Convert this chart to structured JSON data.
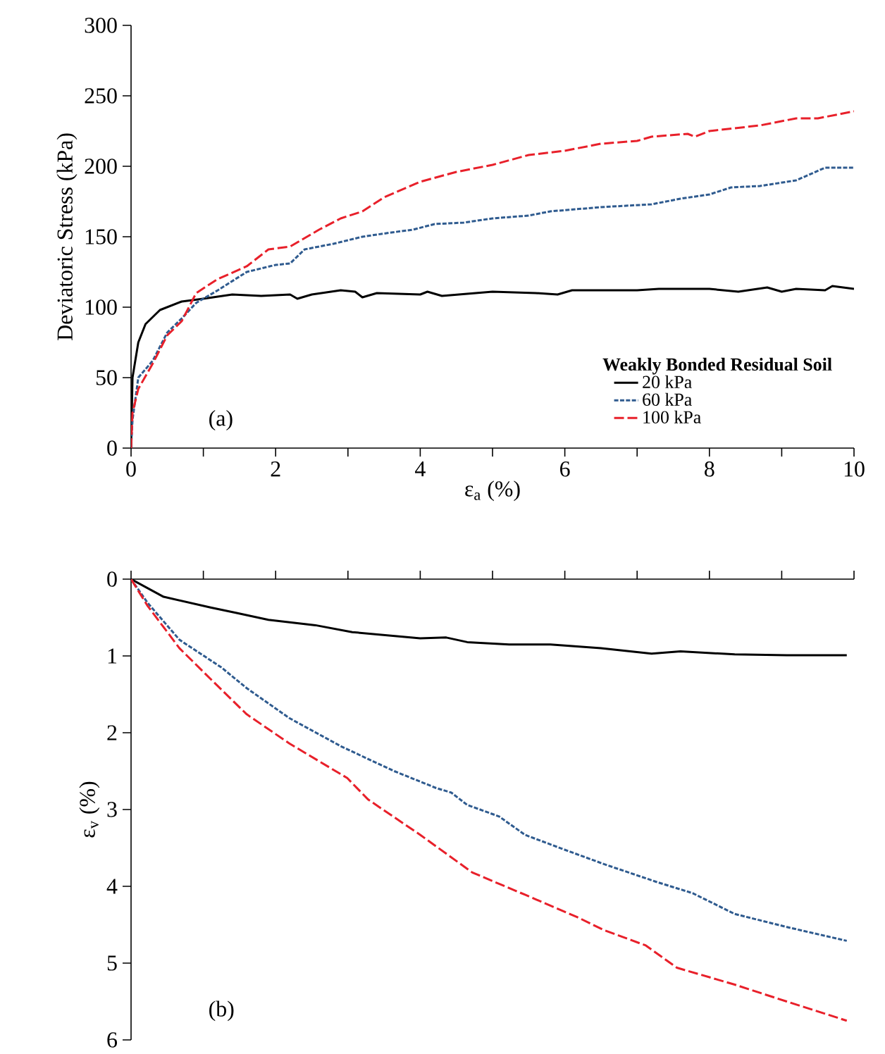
{
  "chart_data": [
    {
      "type": "line",
      "xlabel": "ε$_{a}$ (%)",
      "ylabel": "Deviatoric Stress (kPa)",
      "legend_title": "Weakly Bonded Residual Soil",
      "legend": "bottom right",
      "xlim": [
        0,
        10
      ],
      "xticks": [
        0,
        {
          "value": 1,
          "label": null
        },
        2,
        {
          "value": 3,
          "label": null
        },
        4,
        {
          "value": 5,
          "label": null
        },
        6,
        {
          "value": 7,
          "label": null
        },
        8,
        {
          "value": 9,
          "label": null
        },
        10
      ],
      "ylim": [
        0,
        300
      ],
      "yticks": [
        0,
        50,
        100,
        150,
        200,
        250,
        300
      ],
      "annotations": [
        "(a)"
      ],
      "series": [
        {
          "name": "20 kPa",
          "color": "#000000",
          "line_style": "solid",
          "x": [
            0,
            0.02,
            0.1,
            0.2,
            0.4,
            0.7,
            1.0,
            1.4,
            1.8,
            2.2,
            2.3,
            2.5,
            2.9,
            3.1,
            3.2,
            3.4,
            4.0,
            4.1,
            4.3,
            5.0,
            5.6,
            5.9,
            6.1,
            7.0,
            7.3,
            8.0,
            8.4,
            8.8,
            9.0,
            9.2,
            9.6,
            9.7,
            10
          ],
          "values": [
            0,
            50,
            75,
            88,
            98,
            104,
            106,
            109,
            108,
            109,
            106,
            109,
            112,
            111,
            107,
            110,
            109,
            111,
            108,
            111,
            110,
            109,
            112,
            112,
            113,
            113,
            111,
            114,
            111,
            113,
            112,
            115,
            113
          ]
        },
        {
          "name": "60 kPa",
          "color": "#2f5b8f",
          "line_style": "dotted",
          "x": [
            0,
            0.02,
            0.1,
            0.3,
            0.5,
            0.7,
            0.9,
            1.2,
            1.6,
            2.0,
            2.2,
            2.4,
            2.8,
            3.2,
            3.6,
            3.9,
            4.2,
            4.6,
            5.0,
            5.5,
            5.8,
            6.5,
            7.2,
            7.6,
            8.0,
            8.3,
            8.7,
            9.2,
            9.6,
            10
          ],
          "values": [
            0,
            20,
            50,
            62,
            82,
            92,
            103,
            112,
            125,
            130,
            131,
            141,
            145,
            150,
            153,
            155,
            159,
            160,
            163,
            165,
            168,
            171,
            173,
            177,
            180,
            185,
            186,
            190,
            199,
            199
          ]
        },
        {
          "name": "100 kPa",
          "color": "#e8202a",
          "line_style": "dashed",
          "x": [
            0,
            0.02,
            0.1,
            0.3,
            0.5,
            0.7,
            0.9,
            1.2,
            1.6,
            1.9,
            2.2,
            2.6,
            2.9,
            3.2,
            3.5,
            4.0,
            4.5,
            5.0,
            5.5,
            6.0,
            6.5,
            7.0,
            7.2,
            7.7,
            7.8,
            8.0,
            8.7,
            9.2,
            9.5,
            10
          ],
          "values": [
            0,
            25,
            42,
            60,
            80,
            90,
            110,
            120,
            129,
            141,
            143,
            155,
            163,
            168,
            178,
            189,
            196,
            201,
            208,
            211,
            216,
            218,
            221,
            223,
            221,
            225,
            229,
            234,
            234,
            239
          ]
        }
      ]
    },
    {
      "type": "line",
      "ylabel": "ε$_{v}$ (%)",
      "tick_labels": "y",
      "xlim": [
        0,
        10
      ],
      "xticks": [
        {
          "value": 0,
          "label": null
        },
        {
          "value": 1,
          "label": null
        },
        {
          "value": 2,
          "label": null
        },
        {
          "value": 3,
          "label": null
        },
        {
          "value": 4,
          "label": null
        },
        {
          "value": 5,
          "label": null
        },
        {
          "value": 6,
          "label": null
        },
        {
          "value": 7,
          "label": null
        },
        {
          "value": 8,
          "label": null
        },
        {
          "value": 9,
          "label": null
        },
        {
          "value": 10,
          "label": null
        }
      ],
      "ylim": [
        6,
        0
      ],
      "yticks": [
        0,
        1,
        2,
        3,
        4,
        5,
        6
      ],
      "annotations": [
        "(b)"
      ],
      "series": [
        {
          "color": "#000000",
          "line_style": "solid",
          "x": [
            0,
            0.45,
            1.1,
            1.46,
            1.9,
            2.55,
            3.06,
            4.0,
            4.36,
            4.65,
            5.23,
            5.8,
            6.5,
            7.2,
            7.6,
            8.35,
            9.07,
            9.9
          ],
          "values": [
            0,
            0.23,
            0.37,
            0.44,
            0.53,
            0.6,
            0.69,
            0.77,
            0.76,
            0.82,
            0.85,
            0.85,
            0.9,
            0.97,
            0.94,
            0.98,
            0.99,
            0.99
          ]
        },
        {
          "color": "#2f5b8f",
          "line_style": "dotted",
          "x": [
            0,
            0.23,
            0.67,
            1.25,
            1.6,
            2.19,
            2.91,
            3.64,
            4.22,
            4.43,
            4.65,
            5.09,
            5.45,
            5.96,
            6.54,
            7.26,
            7.77,
            8.35,
            9.07,
            9.9
          ],
          "values": [
            0,
            0.31,
            0.79,
            1.15,
            1.42,
            1.81,
            2.18,
            2.5,
            2.72,
            2.78,
            2.94,
            3.09,
            3.33,
            3.51,
            3.71,
            3.94,
            4.09,
            4.36,
            4.53,
            4.71
          ]
        },
        {
          "color": "#e8202a",
          "line_style": "dashed",
          "x": [
            0,
            0.23,
            0.67,
            1.1,
            1.6,
            2.19,
            2.99,
            3.28,
            4.0,
            4.72,
            5.45,
            6.17,
            6.54,
            7.12,
            7.55,
            8.35,
            9.07,
            9.9
          ],
          "values": [
            0,
            0.35,
            0.9,
            1.3,
            1.76,
            2.14,
            2.59,
            2.87,
            3.33,
            3.82,
            4.11,
            4.4,
            4.57,
            4.77,
            5.06,
            5.28,
            5.5,
            5.75
          ]
        }
      ]
    }
  ]
}
